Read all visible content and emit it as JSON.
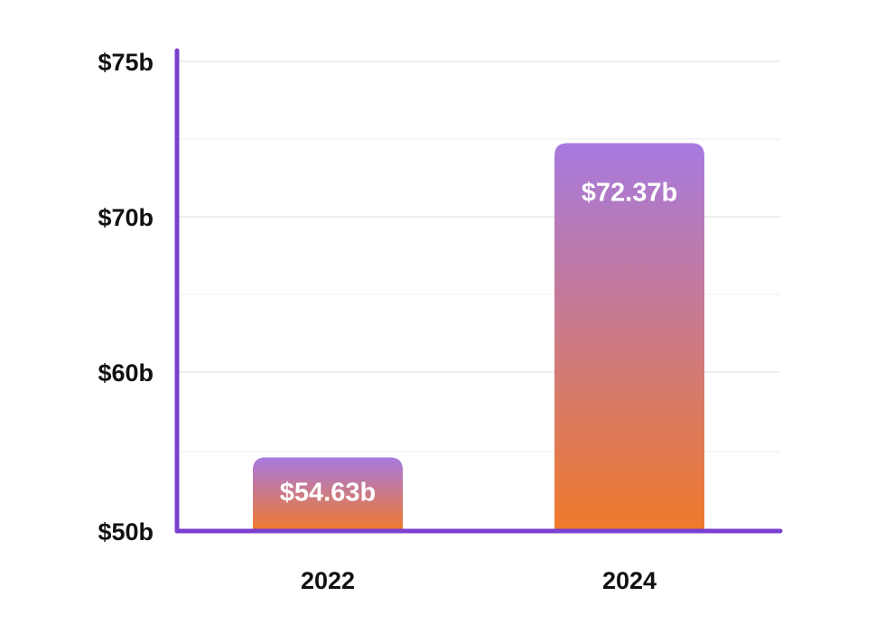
{
  "chart_data": {
    "type": "bar",
    "categories": [
      "2022",
      "2024"
    ],
    "values": [
      54.63,
      72.37
    ],
    "data_labels": [
      "$54.63b",
      "$72.37b"
    ],
    "y_ticks": [
      {
        "value": 50,
        "label": "$50b"
      },
      {
        "value": 60,
        "label": "$60b"
      },
      {
        "value": 70,
        "label": "$70b"
      },
      {
        "value": 75,
        "label": "$75b"
      }
    ],
    "title": "",
    "xlabel": "",
    "ylabel": "",
    "grid": true,
    "legend": "none",
    "colors": {
      "axis": "#7b3fcf",
      "grid": "#e6e6e6",
      "bar_top": "#a77ae0",
      "bar_bottom": "#f07a2a",
      "label": "#ffffff"
    }
  }
}
